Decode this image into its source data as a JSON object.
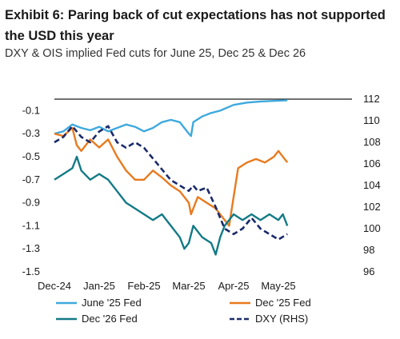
{
  "chart_data": {
    "type": "line",
    "title": "Exhibit 6: Paring back of cut expectations has not supported the USD this year",
    "subtitle": "DXY & OIS implied Fed cuts for June 25, Dec 25 & Dec 26",
    "x_categories": [
      "Dec-24",
      "Jan-25",
      "Feb-25",
      "Mar-25",
      "Apr-25",
      "May-25"
    ],
    "y_left": {
      "ticks": [
        -0.1,
        -0.3,
        -0.5,
        -0.7,
        -0.9,
        -1.1,
        -1.3,
        -1.5
      ],
      "ylim": [
        -1.5,
        0
      ]
    },
    "y_right": {
      "ticks": [
        112,
        110,
        108,
        106,
        104,
        102,
        100,
        98,
        96
      ],
      "ylim": [
        96,
        112
      ]
    },
    "legend_position": "bottom",
    "series": [
      {
        "name": "June '25 Fed",
        "axis": "left",
        "color": "#3fa9dd",
        "dash": false,
        "points": [
          [
            0,
            -0.3
          ],
          [
            0.2,
            -0.28
          ],
          [
            0.4,
            -0.22
          ],
          [
            0.6,
            -0.25
          ],
          [
            0.8,
            -0.27
          ],
          [
            1.0,
            -0.24
          ],
          [
            1.2,
            -0.28
          ],
          [
            1.4,
            -0.25
          ],
          [
            1.6,
            -0.22
          ],
          [
            1.8,
            -0.24
          ],
          [
            2.0,
            -0.28
          ],
          [
            2.2,
            -0.25
          ],
          [
            2.4,
            -0.2
          ],
          [
            2.6,
            -0.18
          ],
          [
            2.8,
            -0.2
          ],
          [
            2.9,
            -0.25
          ],
          [
            3.0,
            -0.3
          ],
          [
            3.05,
            -0.32
          ],
          [
            3.1,
            -0.2
          ],
          [
            3.3,
            -0.15
          ],
          [
            3.5,
            -0.12
          ],
          [
            3.7,
            -0.1
          ],
          [
            4.0,
            -0.05
          ],
          [
            4.3,
            -0.03
          ],
          [
            4.6,
            -0.02
          ],
          [
            5.2,
            -0.01
          ]
        ]
      },
      {
        "name": "Dec '25 Fed",
        "axis": "left",
        "color": "#e87a1e",
        "dash": false,
        "points": [
          [
            0,
            -0.3
          ],
          [
            0.2,
            -0.32
          ],
          [
            0.4,
            -0.25
          ],
          [
            0.5,
            -0.4
          ],
          [
            0.6,
            -0.45
          ],
          [
            0.8,
            -0.35
          ],
          [
            1.0,
            -0.42
          ],
          [
            1.2,
            -0.35
          ],
          [
            1.4,
            -0.5
          ],
          [
            1.6,
            -0.62
          ],
          [
            1.8,
            -0.7
          ],
          [
            2.0,
            -0.7
          ],
          [
            2.2,
            -0.62
          ],
          [
            2.4,
            -0.68
          ],
          [
            2.6,
            -0.75
          ],
          [
            2.8,
            -0.8
          ],
          [
            3.0,
            -0.9
          ],
          [
            3.05,
            -1.0
          ],
          [
            3.2,
            -0.85
          ],
          [
            3.4,
            -0.9
          ],
          [
            3.6,
            -0.95
          ],
          [
            3.8,
            -1.05
          ],
          [
            3.9,
            -1.1
          ],
          [
            4.0,
            -0.85
          ],
          [
            4.1,
            -0.6
          ],
          [
            4.3,
            -0.55
          ],
          [
            4.5,
            -0.52
          ],
          [
            4.7,
            -0.55
          ],
          [
            4.9,
            -0.5
          ],
          [
            5.0,
            -0.45
          ],
          [
            5.2,
            -0.55
          ]
        ]
      },
      {
        "name": "Dec '26 Fed",
        "axis": "left",
        "color": "#137a86",
        "dash": false,
        "points": [
          [
            0,
            -0.7
          ],
          [
            0.2,
            -0.65
          ],
          [
            0.4,
            -0.6
          ],
          [
            0.5,
            -0.5
          ],
          [
            0.6,
            -0.62
          ],
          [
            0.8,
            -0.7
          ],
          [
            1.0,
            -0.65
          ],
          [
            1.2,
            -0.7
          ],
          [
            1.4,
            -0.8
          ],
          [
            1.6,
            -0.9
          ],
          [
            1.8,
            -0.95
          ],
          [
            2.0,
            -1.0
          ],
          [
            2.2,
            -1.05
          ],
          [
            2.4,
            -1.0
          ],
          [
            2.6,
            -1.1
          ],
          [
            2.8,
            -1.2
          ],
          [
            2.9,
            -1.3
          ],
          [
            3.0,
            -1.25
          ],
          [
            3.1,
            -1.1
          ],
          [
            3.3,
            -1.2
          ],
          [
            3.5,
            -1.25
          ],
          [
            3.6,
            -1.35
          ],
          [
            3.7,
            -1.2
          ],
          [
            3.8,
            -1.1
          ],
          [
            4.0,
            -1.0
          ],
          [
            4.2,
            -1.05
          ],
          [
            4.4,
            -1.0
          ],
          [
            4.6,
            -1.05
          ],
          [
            4.8,
            -1.0
          ],
          [
            5.0,
            -1.05
          ],
          [
            5.1,
            -1.0
          ],
          [
            5.2,
            -1.1
          ]
        ]
      },
      {
        "name": "DXY (RHS)",
        "axis": "right",
        "color": "#1b2a6b",
        "dash": true,
        "points": [
          [
            0,
            108
          ],
          [
            0.2,
            108.5
          ],
          [
            0.4,
            109.5
          ],
          [
            0.6,
            108.5
          ],
          [
            0.8,
            108
          ],
          [
            1.0,
            109
          ],
          [
            1.2,
            109.5
          ],
          [
            1.4,
            108
          ],
          [
            1.6,
            107.5
          ],
          [
            1.8,
            108
          ],
          [
            2.0,
            107.5
          ],
          [
            2.2,
            106.5
          ],
          [
            2.4,
            105.5
          ],
          [
            2.6,
            104.5
          ],
          [
            2.8,
            104
          ],
          [
            3.0,
            103.5
          ],
          [
            3.1,
            104
          ],
          [
            3.2,
            103.5
          ],
          [
            3.4,
            103.8
          ],
          [
            3.6,
            102
          ],
          [
            3.8,
            100
          ],
          [
            4.0,
            99.5
          ],
          [
            4.2,
            100
          ],
          [
            4.4,
            101
          ],
          [
            4.6,
            100
          ],
          [
            4.8,
            99.5
          ],
          [
            5.0,
            99
          ],
          [
            5.2,
            99.5
          ]
        ]
      }
    ]
  }
}
